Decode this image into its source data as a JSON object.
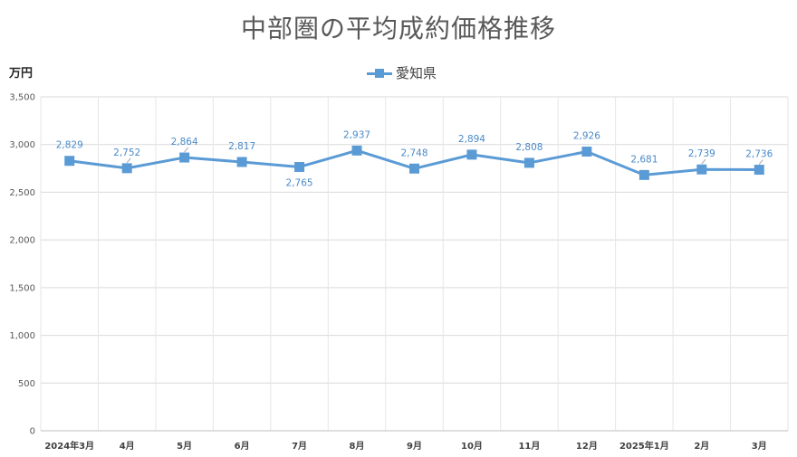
{
  "chart_data": {
    "type": "line",
    "title": "中部圏の平均成約価格推移",
    "ylabel": "万円",
    "xlabel": "",
    "ylim": [
      0,
      3500
    ],
    "ytick_labels": [
      "0",
      "500",
      "1,000",
      "1,500",
      "2,000",
      "2,500",
      "3,000",
      "3,500"
    ],
    "yticks": [
      0,
      500,
      1000,
      1500,
      2000,
      2500,
      3000,
      3500
    ],
    "categories": [
      "2024年3月",
      "4月",
      "5月",
      "6月",
      "7月",
      "8月",
      "9月",
      "10月",
      "11月",
      "12月",
      "2025年1月",
      "2月",
      "3月"
    ],
    "grid": true,
    "legend_position": "top-center",
    "series": [
      {
        "name": "愛知県",
        "color": "#5b9bd5",
        "values": [
          2829,
          2752,
          2864,
          2817,
          2765,
          2937,
          2748,
          2894,
          2808,
          2926,
          2681,
          2739,
          2736
        ],
        "labels": [
          "2,829",
          "2,752",
          "2,864",
          "2,817",
          "2,765",
          "2,937",
          "2,748",
          "2,894",
          "2,808",
          "2,926",
          "2,681",
          "2,739",
          "2,736"
        ]
      }
    ]
  }
}
